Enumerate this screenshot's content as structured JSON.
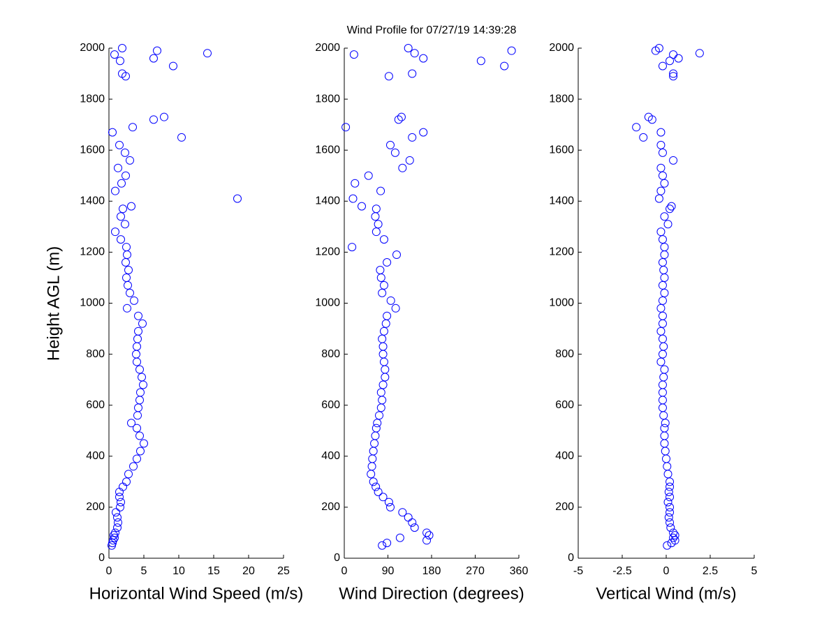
{
  "title": "Wind Profile for  07/27/19 14:39:28",
  "chart_data": [
    {
      "type": "scatter",
      "xlabel": "Horizontal Wind Speed (m/s)",
      "ylabel": "Height AGL (m)",
      "color": "#0000ff",
      "xlim": [
        0,
        25
      ],
      "xticks": [
        0,
        5,
        10,
        15,
        20,
        25
      ],
      "ylim": [
        0,
        2000
      ],
      "yticks": [
        0,
        200,
        400,
        600,
        800,
        1000,
        1200,
        1400,
        1600,
        1800,
        2000
      ],
      "x": [
        0.4,
        0.5,
        0.6,
        0.8,
        0.7,
        0.9,
        1.2,
        1.3,
        1.2,
        1.0,
        1.6,
        1.7,
        1.5,
        1.5,
        2.0,
        2.5,
        2.8,
        3.5,
        4.0,
        4.5,
        5.0,
        4.4,
        4.0,
        3.2,
        4.1,
        4.2,
        4.4,
        4.5,
        4.9,
        4.7,
        4.4,
        4.0,
        3.9,
        4.0,
        4.1,
        4.2,
        4.8,
        4.2,
        2.6,
        3.6,
        3.0,
        2.7,
        2.5,
        2.8,
        2.4,
        2.6,
        2.5,
        1.7,
        0.9,
        2.3,
        1.7,
        2.0,
        3.2,
        18.4,
        0.9,
        1.8,
        2.4,
        1.3,
        3.0,
        2.3,
        1.5,
        10.4,
        0.5,
        3.4,
        6.4,
        7.9,
        2.4,
        1.9,
        9.2,
        1.6,
        6.4,
        0.8,
        14.1,
        6.9,
        1.9
      ],
      "y": [
        50,
        60,
        70,
        80,
        90,
        100,
        120,
        140,
        160,
        180,
        200,
        220,
        240,
        260,
        280,
        300,
        330,
        360,
        390,
        420,
        450,
        480,
        510,
        530,
        560,
        590,
        620,
        650,
        680,
        710,
        740,
        770,
        800,
        830,
        860,
        890,
        920,
        950,
        980,
        1010,
        1040,
        1070,
        1100,
        1130,
        1160,
        1190,
        1220,
        1250,
        1280,
        1310,
        1340,
        1370,
        1380,
        1410,
        1440,
        1470,
        1500,
        1530,
        1560,
        1590,
        1620,
        1650,
        1670,
        1690,
        1720,
        1730,
        1890,
        1900,
        1930,
        1950,
        1960,
        1975,
        1980,
        1990,
        2000
      ]
    },
    {
      "type": "scatter",
      "xlabel": "Wind Direction (degrees)",
      "color": "#0000ff",
      "xlim": [
        0,
        360
      ],
      "xticks": [
        0,
        90,
        180,
        270,
        360
      ],
      "ylim": [
        0,
        2000
      ],
      "yticks": [
        0,
        200,
        400,
        600,
        800,
        1000,
        1200,
        1400,
        1600,
        1800,
        2000
      ],
      "x": [
        78,
        88,
        170,
        115,
        175,
        170,
        145,
        140,
        132,
        120,
        95,
        92,
        80,
        70,
        65,
        60,
        55,
        57,
        58,
        60,
        62,
        64,
        66,
        68,
        72,
        76,
        78,
        76,
        80,
        84,
        84,
        82,
        80,
        80,
        78,
        82,
        86,
        88,
        106,
        96,
        78,
        82,
        76,
        74,
        88,
        108,
        16,
        82,
        66,
        70,
        64,
        66,
        36,
        18,
        75,
        22,
        50,
        120,
        135,
        105,
        95,
        140,
        163,
        3,
        112,
        118,
        92,
        140,
        330,
        282,
        163,
        20,
        145,
        345,
        132
      ],
      "y": [
        50,
        60,
        70,
        80,
        90,
        100,
        120,
        140,
        160,
        180,
        200,
        220,
        240,
        260,
        280,
        300,
        330,
        360,
        390,
        420,
        450,
        480,
        510,
        530,
        560,
        590,
        620,
        650,
        680,
        710,
        740,
        770,
        800,
        830,
        860,
        890,
        920,
        950,
        980,
        1010,
        1040,
        1070,
        1100,
        1130,
        1160,
        1190,
        1220,
        1250,
        1280,
        1310,
        1340,
        1370,
        1380,
        1410,
        1440,
        1470,
        1500,
        1530,
        1560,
        1590,
        1620,
        1650,
        1670,
        1690,
        1720,
        1730,
        1890,
        1900,
        1930,
        1950,
        1960,
        1975,
        1980,
        1990,
        2000
      ]
    },
    {
      "type": "scatter",
      "xlabel": "Vertical Wind (m/s)",
      "color": "#0000ff",
      "xlim": [
        -5,
        5
      ],
      "xticks": [
        -5,
        -2.5,
        0,
        2.5,
        5
      ],
      "ylim": [
        0,
        2000
      ],
      "yticks": [
        0,
        200,
        400,
        600,
        800,
        1000,
        1200,
        1400,
        1600,
        1800,
        2000
      ],
      "x": [
        0.05,
        0.3,
        0.5,
        0.4,
        0.5,
        0.4,
        0.25,
        0.2,
        0.15,
        0.2,
        0.2,
        0.1,
        0.2,
        0.15,
        0.2,
        0.2,
        0.1,
        0.05,
        0,
        -0.05,
        -0.1,
        -0.1,
        -0.1,
        -0.05,
        -0.15,
        -0.2,
        -0.2,
        -0.2,
        -0.2,
        -0.15,
        -0.1,
        -0.3,
        -0.2,
        -0.15,
        -0.2,
        -0.3,
        -0.2,
        -0.2,
        -0.3,
        -0.2,
        -0.1,
        -0.2,
        -0.1,
        -0.15,
        -0.2,
        -0.1,
        -0.1,
        -0.2,
        -0.3,
        0.1,
        -0.1,
        0.2,
        0.3,
        -0.4,
        -0.3,
        -0.1,
        -0.2,
        -0.3,
        0.4,
        -0.2,
        -0.3,
        -1.3,
        -0.3,
        -1.7,
        -0.8,
        -1.0,
        0.4,
        0.4,
        -0.2,
        0.2,
        0.7,
        0.4,
        1.9,
        -0.6,
        -0.4
      ],
      "y": [
        50,
        60,
        70,
        80,
        90,
        100,
        120,
        140,
        160,
        180,
        200,
        220,
        240,
        260,
        280,
        300,
        330,
        360,
        390,
        420,
        450,
        480,
        510,
        530,
        560,
        590,
        620,
        650,
        680,
        710,
        740,
        770,
        800,
        830,
        860,
        890,
        920,
        950,
        980,
        1010,
        1040,
        1070,
        1100,
        1130,
        1160,
        1190,
        1220,
        1250,
        1280,
        1310,
        1340,
        1370,
        1380,
        1410,
        1440,
        1470,
        1500,
        1530,
        1560,
        1590,
        1620,
        1650,
        1670,
        1690,
        1720,
        1730,
        1890,
        1900,
        1930,
        1950,
        1960,
        1975,
        1980,
        1990,
        2000
      ]
    }
  ]
}
